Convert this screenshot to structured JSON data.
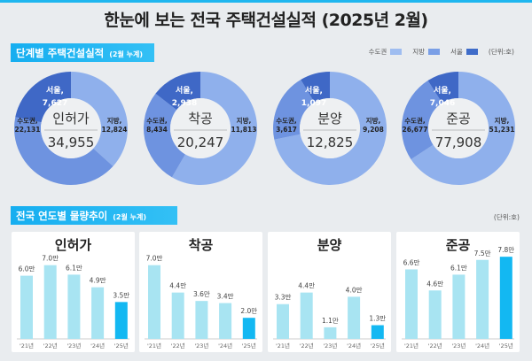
{
  "title": "한눈에 보는 전국 주택건설실적  (2025년 2월)",
  "section1": {
    "label": "단계별 주택건설실적",
    "sub": "(2월 누계)"
  },
  "legend": [
    {
      "name": "수도권",
      "color": "#9fbdf0"
    },
    {
      "name": "지방",
      "color": "#7a9fe6"
    },
    {
      "name": "서울",
      "color": "#3f6cc9"
    }
  ],
  "unit": "(단위:호)",
  "section2": {
    "label": "전국 연도별 물량추이",
    "sub": "(2월 누계)"
  },
  "colors": {
    "local": "#8fb0ec",
    "capital": "#6e93e0",
    "seoul": "#3f68c6",
    "bar": "#a8e4f2",
    "bar_current": "#13b8f2",
    "accent": "#16aef0"
  },
  "chart_data": [
    {
      "type": "pie",
      "title": "인허가",
      "total": "34,955",
      "slices": [
        {
          "name": "지방",
          "value": 12824,
          "label": "지방,",
          "value_label": "12,824"
        },
        {
          "name": "수도권",
          "value": 22131,
          "label": "수도권,",
          "value_label": "22,131"
        },
        {
          "name": "서울",
          "value": 7627,
          "label": "서울,",
          "value_label": "7,627"
        }
      ]
    },
    {
      "type": "pie",
      "title": "착공",
      "total": "20,247",
      "slices": [
        {
          "name": "지방",
          "value": 11813,
          "label": "지방,",
          "value_label": "11,813"
        },
        {
          "name": "수도권",
          "value": 8434,
          "label": "수도권,",
          "value_label": "8,434"
        },
        {
          "name": "서울",
          "value": 2938,
          "label": "서울,",
          "value_label": "2,938"
        }
      ]
    },
    {
      "type": "pie",
      "title": "분양",
      "total": "12,825",
      "slices": [
        {
          "name": "지방",
          "value": 9208,
          "label": "지방,",
          "value_label": "9,208"
        },
        {
          "name": "수도권",
          "value": 3617,
          "label": "수도권,",
          "value_label": "3,617"
        },
        {
          "name": "서울",
          "value": 1097,
          "label": "서울,",
          "value_label": "1,097"
        }
      ]
    },
    {
      "type": "pie",
      "title": "준공",
      "total": "77,908",
      "slices": [
        {
          "name": "지방",
          "value": 51231,
          "label": "지방,",
          "value_label": "51,231"
        },
        {
          "name": "수도권",
          "value": 26677,
          "label": "수도권,",
          "value_label": "26,677"
        },
        {
          "name": "서울",
          "value": 7046,
          "label": "서울,",
          "value_label": "7,046"
        }
      ]
    },
    {
      "type": "bar",
      "title": "인허가",
      "categories": [
        "'21년",
        "'22년",
        "'23년",
        "'24년",
        "'25년"
      ],
      "values": [
        6.0,
        7.0,
        6.1,
        4.9,
        3.5
      ],
      "labels": [
        "6.0만",
        "7.0만",
        "6.1만",
        "4.9만",
        "3.5만"
      ]
    },
    {
      "type": "bar",
      "title": "착공",
      "categories": [
        "'21년",
        "'22년",
        "'23년",
        "'24년",
        "'25년"
      ],
      "values": [
        7.0,
        4.4,
        3.6,
        3.4,
        2.0
      ],
      "labels": [
        "7.0만",
        "4.4만",
        "3.6만",
        "3.4만",
        "2.0만"
      ]
    },
    {
      "type": "bar",
      "title": "분양",
      "categories": [
        "'21년",
        "'22년",
        "'23년",
        "'24년",
        "'25년"
      ],
      "values": [
        3.3,
        4.4,
        1.1,
        4.0,
        1.3
      ],
      "labels": [
        "3.3만",
        "4.4만",
        "1.1만",
        "4.0만",
        "1.3만"
      ]
    },
    {
      "type": "bar",
      "title": "준공",
      "categories": [
        "'21년",
        "'22년",
        "'23년",
        "'24년",
        "'25년"
      ],
      "values": [
        6.6,
        4.6,
        6.1,
        7.5,
        7.8
      ],
      "labels": [
        "6.6만",
        "4.6만",
        "6.1만",
        "7.5만",
        "7.8만"
      ]
    }
  ]
}
